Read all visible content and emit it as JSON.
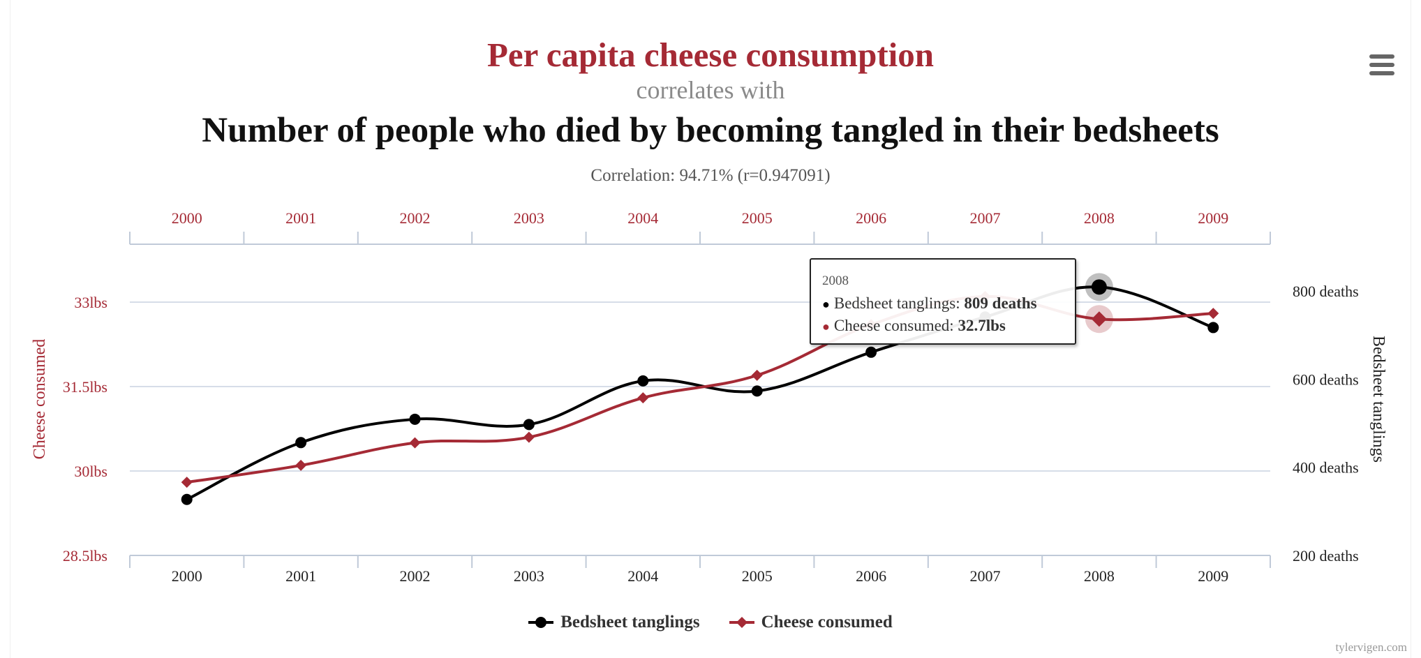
{
  "header": {
    "title": "Per capita cheese consumption",
    "subtitle": "correlates with",
    "title2": "Number of people who died by becoming tangled in their bedsheets",
    "correlation": "Correlation: 94.71% (r=0.947091)"
  },
  "colors": {
    "cheese": "#a52a35",
    "bedsheet": "#000000",
    "grid": "#d6dde8"
  },
  "icons": {
    "menu": "hamburger-menu-icon"
  },
  "chart_data": {
    "type": "line",
    "x": [
      "2000",
      "2001",
      "2002",
      "2003",
      "2004",
      "2005",
      "2006",
      "2007",
      "2008",
      "2009"
    ],
    "series": [
      {
        "name": "Bedsheet tanglings",
        "axis": "right",
        "values": [
          327,
          456,
          509,
          497,
          596,
          573,
          661,
          741,
          809,
          717
        ]
      },
      {
        "name": "Cheese consumed",
        "axis": "left",
        "values": [
          29.8,
          30.1,
          30.5,
          30.6,
          31.3,
          31.7,
          32.6,
          33.1,
          32.7,
          32.8
        ]
      }
    ],
    "left_axis": {
      "label": "Cheese consumed",
      "ylim": [
        28.5,
        34
      ],
      "ticks": [
        28.5,
        30,
        31.5,
        33
      ],
      "tick_labels": [
        "28.5lbs",
        "30lbs",
        "31.5lbs",
        "33lbs"
      ]
    },
    "right_axis": {
      "label": "Bedsheet tanglings",
      "ylim": [
        200,
        853
      ],
      "ticks": [
        200,
        400,
        600,
        800
      ],
      "tick_labels": [
        "200 deaths",
        "400 deaths",
        "600 deaths",
        "800 deaths"
      ]
    },
    "grid": true,
    "legend": "bottom-center",
    "tooltip": {
      "year": "2008",
      "bedsheet_label": "Bedsheet tanglings: ",
      "bedsheet_value": "809 deaths",
      "cheese_label": "Cheese consumed: ",
      "cheese_value": "32.7lbs"
    }
  },
  "credit": "tylervigen.com"
}
